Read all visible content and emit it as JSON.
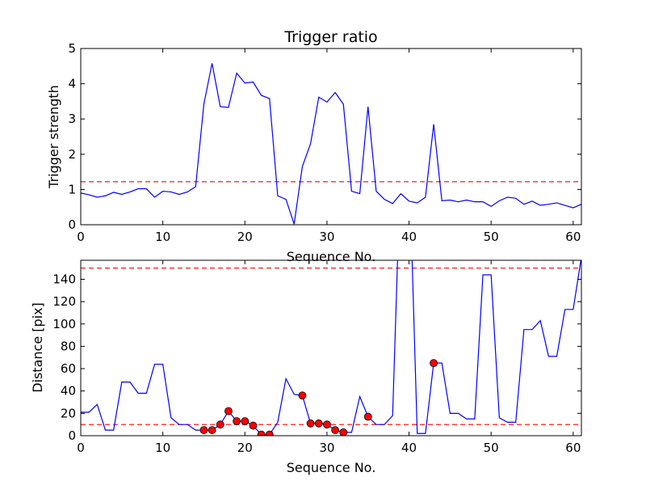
{
  "chart_data": [
    {
      "type": "line",
      "title": "Trigger ratio",
      "xlabel": "Sequence No.",
      "ylabel": "Trigger strength",
      "xlim": [
        0,
        61
      ],
      "ylim": [
        0,
        5
      ],
      "xticks": [
        0,
        10,
        20,
        30,
        40,
        50,
        60
      ],
      "yticks": [
        0,
        1,
        2,
        3,
        4,
        5
      ],
      "grid": false,
      "series": [
        {
          "style": "solid",
          "color": "#0000ff",
          "x": [
            0,
            1,
            2,
            3,
            4,
            5,
            6,
            7,
            8,
            9,
            10,
            11,
            12,
            13,
            14,
            15,
            16,
            17,
            18,
            19,
            20,
            21,
            22,
            23,
            24,
            25,
            26,
            27,
            28,
            29,
            30,
            31,
            32,
            33,
            34,
            35,
            36,
            37,
            38,
            39,
            40,
            41,
            42,
            43,
            44,
            45,
            46,
            47,
            48,
            49,
            50,
            51,
            52,
            53,
            54,
            55,
            56,
            57,
            58,
            59,
            60,
            61
          ],
          "y": [
            0.9,
            0.85,
            0.78,
            0.82,
            0.92,
            0.86,
            0.93,
            1.02,
            1.02,
            0.78,
            0.95,
            0.93,
            0.86,
            0.93,
            1.08,
            3.42,
            4.58,
            3.35,
            3.33,
            4.3,
            4.02,
            4.05,
            3.67,
            3.58,
            0.82,
            0.72,
            0.02,
            1.65,
            2.3,
            3.62,
            3.48,
            3.75,
            3.42,
            0.95,
            0.88,
            3.35,
            0.95,
            0.72,
            0.6,
            0.88,
            0.67,
            0.62,
            0.78,
            2.85,
            0.68,
            0.7,
            0.65,
            0.7,
            0.65,
            0.65,
            0.52,
            0.68,
            0.78,
            0.75,
            0.58,
            0.67,
            0.55,
            0.58,
            0.62,
            0.55,
            0.48,
            0.58
          ]
        }
      ],
      "hlines": [
        {
          "y": 1.22,
          "color": "#ff0000",
          "style": "dashed"
        }
      ]
    },
    {
      "type": "line",
      "title": "",
      "xlabel": "Sequence No.",
      "ylabel": "Distance [pix]",
      "xlim": [
        0,
        61
      ],
      "ylim": [
        0,
        157
      ],
      "xticks": [
        0,
        10,
        20,
        30,
        40,
        50,
        60
      ],
      "yticks": [
        0,
        20,
        40,
        60,
        80,
        100,
        120,
        140
      ],
      "grid": false,
      "series": [
        {
          "style": "solid",
          "color": "#0000ff",
          "x": [
            0,
            1,
            2,
            3,
            4,
            5,
            6,
            7,
            8,
            9,
            10,
            11,
            12,
            13,
            14,
            15,
            16,
            17,
            18,
            19,
            20,
            21,
            22,
            23,
            24,
            25,
            26,
            27,
            28,
            29,
            30,
            31,
            32,
            33,
            34,
            35,
            36,
            37,
            38,
            39,
            40,
            41,
            42,
            43,
            44,
            45,
            46,
            47,
            48,
            49,
            50,
            51,
            52,
            53,
            54,
            55,
            56,
            57,
            58,
            59,
            60,
            61
          ],
          "y": [
            21,
            21,
            28,
            5,
            5,
            48,
            48,
            38,
            38,
            64,
            64,
            16,
            10,
            10,
            5,
            5,
            5,
            10,
            22,
            13,
            13,
            9,
            1,
            1,
            12,
            51,
            37,
            36,
            11,
            11,
            10,
            5,
            3,
            3,
            35,
            17,
            10,
            10,
            18,
            250,
            250,
            2,
            2,
            65,
            65,
            20,
            20,
            15,
            15,
            144,
            144,
            16,
            12,
            12,
            95,
            95,
            103,
            71,
            71,
            113,
            113,
            160
          ]
        },
        {
          "style": "markers",
          "color": "#ff0000",
          "x": [
            15,
            16,
            17,
            18,
            19,
            20,
            21,
            22,
            23,
            27,
            28,
            29,
            30,
            31,
            32,
            35,
            43
          ],
          "y": [
            5,
            5,
            10,
            22,
            13,
            13,
            9,
            1,
            1,
            36,
            11,
            11,
            10,
            5,
            3,
            17,
            65
          ]
        }
      ],
      "hlines": [
        {
          "y": 150,
          "color": "#ff0000",
          "style": "dashed"
        },
        {
          "y": 10,
          "color": "#ff0000",
          "style": "dashed"
        }
      ]
    }
  ]
}
